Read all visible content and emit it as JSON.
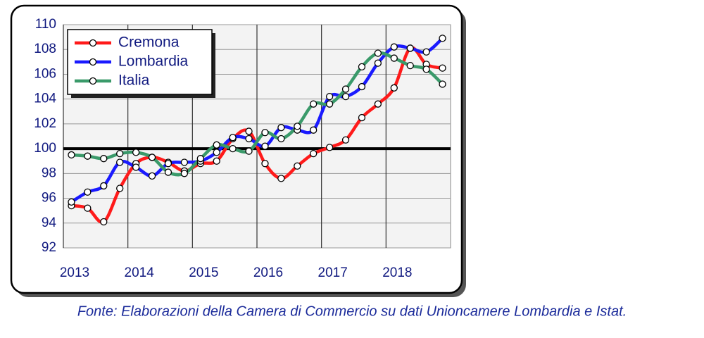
{
  "chart_data": {
    "type": "line",
    "x": [
      2013.125,
      2013.375,
      2013.625,
      2013.875,
      2014.125,
      2014.375,
      2014.625,
      2014.875,
      2015.125,
      2015.375,
      2015.625,
      2015.875,
      2016.125,
      2016.375,
      2016.625,
      2016.875,
      2017.125,
      2017.375,
      2017.625,
      2017.875,
      2018.125,
      2018.375,
      2018.625,
      2018.875
    ],
    "series": [
      {
        "name": "Cremona",
        "color": "#ff1a1a",
        "values": [
          95.4,
          95.2,
          94.1,
          96.8,
          98.8,
          99.3,
          98.9,
          98.2,
          98.8,
          99.0,
          100.8,
          101.4,
          98.8,
          97.6,
          98.6,
          99.6,
          100.1,
          100.7,
          102.5,
          103.6,
          104.9,
          108.1,
          106.8,
          106.5
        ]
      },
      {
        "name": "Lombardia",
        "color": "#1a1aff",
        "values": [
          95.7,
          96.5,
          97.0,
          98.9,
          98.5,
          97.8,
          98.8,
          98.9,
          99.0,
          99.7,
          100.9,
          100.8,
          100.2,
          101.7,
          101.5,
          101.5,
          104.2,
          104.2,
          105.0,
          106.9,
          108.2,
          108.1,
          107.8,
          108.9
        ]
      },
      {
        "name": "Italia",
        "color": "#3a9a6a",
        "values": [
          99.5,
          99.4,
          99.2,
          99.6,
          99.7,
          99.3,
          98.1,
          98.0,
          99.2,
          100.3,
          100.0,
          99.8,
          101.3,
          100.8,
          101.8,
          103.6,
          103.6,
          104.8,
          106.6,
          107.7,
          107.3,
          106.7,
          106.4,
          105.2
        ]
      }
    ],
    "xlim": [
      2013,
      2019
    ],
    "xticks": [
      2013,
      2014,
      2015,
      2016,
      2017,
      2018
    ],
    "ylim": [
      92,
      110
    ],
    "yticks": [
      92,
      94,
      96,
      98,
      100,
      102,
      104,
      106,
      108,
      110
    ],
    "reference_line": 100,
    "grid": true,
    "legend": "upper left",
    "note": "Fonte: Elaborazioni della Camera di Commercio su dati Unioncamere Lombardia e Istat."
  }
}
